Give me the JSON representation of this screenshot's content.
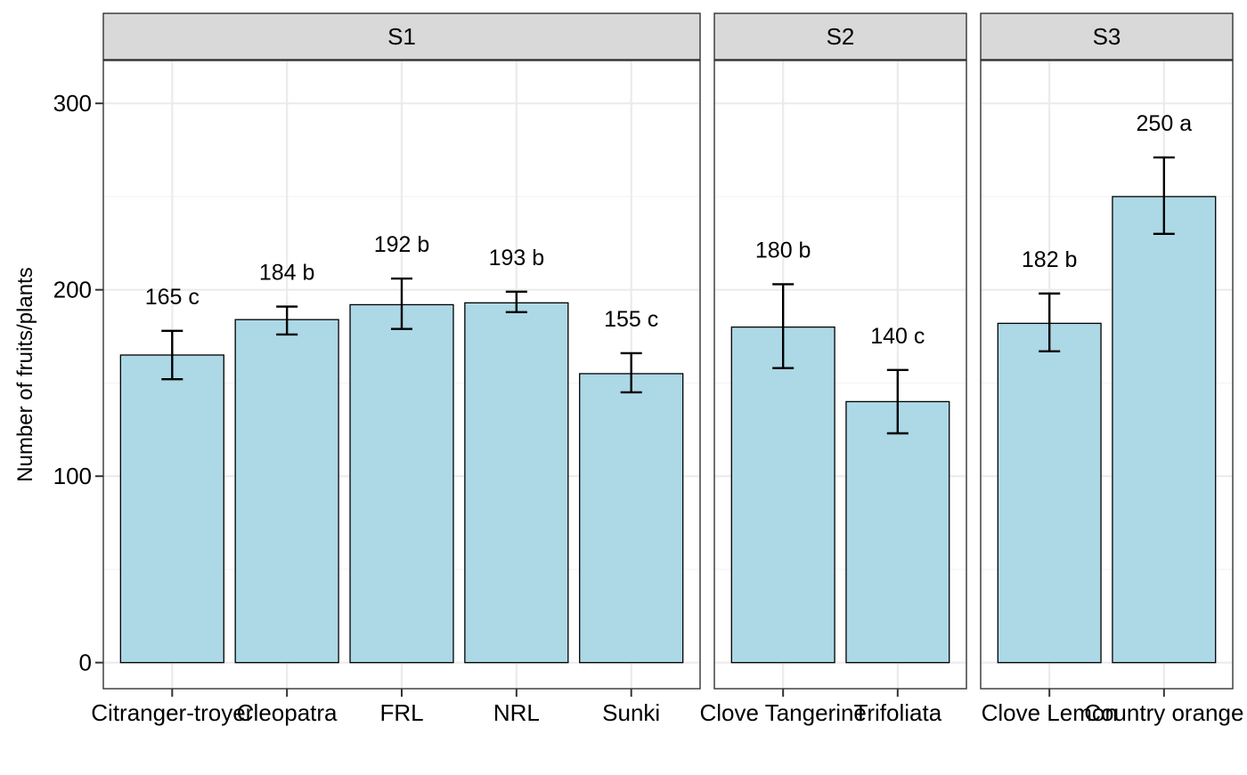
{
  "chart_data": {
    "type": "bar",
    "ylabel": "Number of fruits/plants",
    "xlabel": "",
    "ylim": [
      -14,
      323
    ],
    "yticks": [
      0,
      100,
      200,
      300
    ],
    "grid": true,
    "legend": "none",
    "colors": {
      "bar_fill": "#add8e6",
      "bar_stroke": "#000000",
      "strip_fill": "#d9d9d9",
      "grid_major": "#ebebeb",
      "grid_minor": "#f3f3f3",
      "panel_border": "#333333"
    },
    "panels": [
      {
        "strip": "S1",
        "categories": [
          "Citranger-troyer",
          "Cleopatra",
          "FRL",
          "NRL",
          "Sunki"
        ],
        "values": [
          165,
          184,
          192,
          193,
          155
        ],
        "error_low": [
          152,
          176,
          179,
          188,
          145
        ],
        "error_high": [
          178,
          191,
          206,
          199,
          166
        ],
        "labels": [
          "165 c",
          "184 b",
          "192 b",
          "193 b",
          "155 c"
        ]
      },
      {
        "strip": "S2",
        "categories": [
          "Clove Tangerine",
          "Trifoliata"
        ],
        "values": [
          180,
          140
        ],
        "error_low": [
          158,
          123
        ],
        "error_high": [
          203,
          157
        ],
        "labels": [
          "180 b",
          "140 c"
        ]
      },
      {
        "strip": "S3",
        "categories": [
          "Clove Lemon",
          "Country orange"
        ],
        "values": [
          182,
          250
        ],
        "error_low": [
          167,
          230
        ],
        "error_high": [
          198,
          271
        ],
        "labels": [
          "182 b",
          "250 a"
        ]
      }
    ]
  }
}
